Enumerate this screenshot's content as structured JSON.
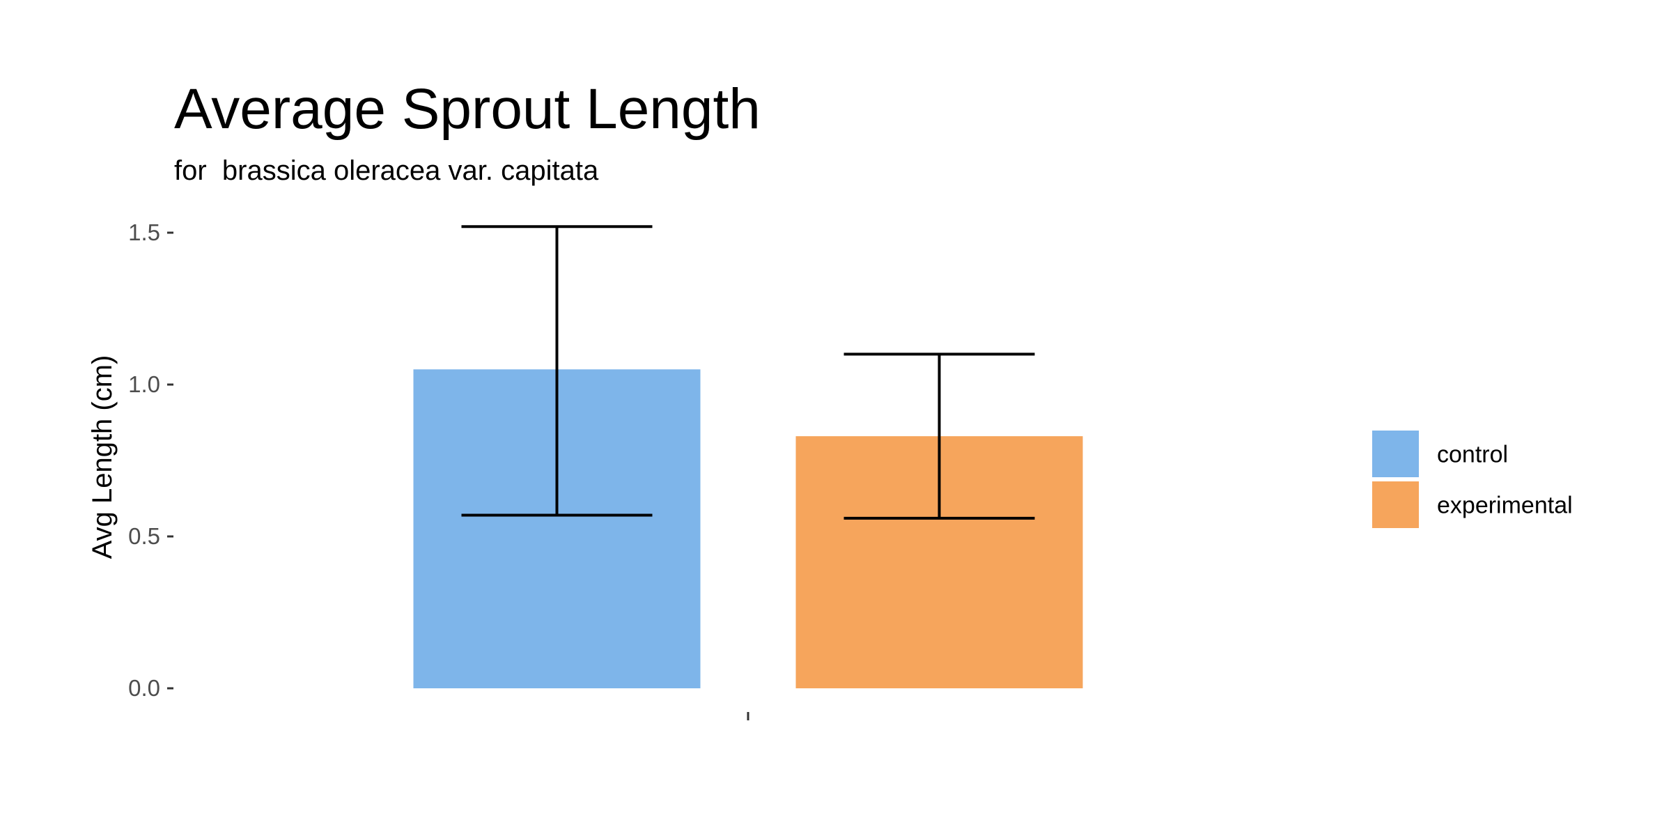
{
  "chart_data": {
    "type": "bar",
    "title": "Average Sprout Length",
    "subtitle": "for  brassica oleracea var. capitata",
    "xlabel": "",
    "ylabel": "Avg Length (cm)",
    "ylim": [
      0,
      1.6
    ],
    "yticks": [
      {
        "value": 0.0,
        "label": "0.0"
      },
      {
        "value": 0.5,
        "label": "0.5"
      },
      {
        "value": 1.0,
        "label": "1.0"
      },
      {
        "value": 1.5,
        "label": "1.5"
      }
    ],
    "grid": false,
    "legend_position": "right",
    "categories": [
      ""
    ],
    "series": [
      {
        "name": "control",
        "values": [
          1.05
        ],
        "error_low": [
          0.57
        ],
        "error_high": [
          1.52
        ],
        "color": "#7EB5EA"
      },
      {
        "name": "experimental",
        "values": [
          0.83
        ],
        "error_low": [
          0.56
        ],
        "error_high": [
          1.1
        ],
        "color": "#F6A55C"
      }
    ]
  }
}
